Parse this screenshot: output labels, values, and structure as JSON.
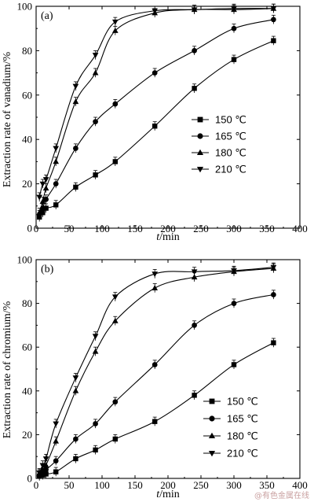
{
  "chart_data": [
    {
      "type": "line",
      "panel_label": "(a)",
      "ylabel": "Extraction rate of vanadium/%",
      "xlabel_italic": "t",
      "xlabel_rest": "/min",
      "xlim": [
        0,
        400
      ],
      "ylim": [
        0,
        100
      ],
      "xticks": [
        0,
        50,
        100,
        150,
        200,
        250,
        300,
        350,
        400
      ],
      "yticks": [
        0,
        20,
        40,
        60,
        80,
        100
      ],
      "grid": false,
      "legend_position": "center-right",
      "series": [
        {
          "name": "150 ℃",
          "marker": "square",
          "x": [
            5,
            10,
            15,
            30,
            60,
            90,
            120,
            180,
            240,
            300,
            360
          ],
          "y": [
            5,
            7,
            9,
            10.5,
            18.5,
            24,
            30,
            46,
            63,
            76,
            84.5
          ]
        },
        {
          "name": "165 ℃",
          "marker": "circle",
          "x": [
            5,
            10,
            15,
            30,
            60,
            90,
            120,
            180,
            240,
            300,
            360
          ],
          "y": [
            6,
            9,
            13,
            20,
            36,
            48,
            56,
            70,
            80,
            90,
            94
          ]
        },
        {
          "name": "180 ℃",
          "marker": "triangle-up",
          "x": [
            5,
            10,
            15,
            30,
            60,
            90,
            120,
            180,
            240,
            300,
            360
          ],
          "y": [
            7,
            12,
            18,
            30,
            57,
            70,
            89,
            97,
            98.5,
            98.5,
            99
          ]
        },
        {
          "name": "210 ℃",
          "marker": "triangle-down",
          "x": [
            5,
            10,
            15,
            30,
            60,
            90,
            120,
            180,
            240,
            300,
            360
          ],
          "y": [
            14,
            20,
            22,
            36,
            64,
            78,
            93,
            98,
            98.5,
            99,
            99
          ]
        }
      ]
    },
    {
      "type": "line",
      "panel_label": "(b)",
      "ylabel": "Extraction rate of chromium/%",
      "xlabel_italic": "t",
      "xlabel_rest": "/min",
      "xlim": [
        0,
        400
      ],
      "ylim": [
        0,
        100
      ],
      "xticks": [
        0,
        50,
        100,
        150,
        200,
        250,
        300,
        350,
        400
      ],
      "yticks": [
        0,
        20,
        40,
        60,
        80,
        100
      ],
      "grid": false,
      "legend_position": "bottom-right",
      "series": [
        {
          "name": "150 ℃",
          "marker": "square",
          "x": [
            5,
            10,
            15,
            30,
            60,
            90,
            120,
            180,
            240,
            300,
            360
          ],
          "y": [
            1,
            1.5,
            2,
            3,
            9,
            13,
            18,
            26,
            38,
            52,
            62
          ]
        },
        {
          "name": "165 ℃",
          "marker": "circle",
          "x": [
            5,
            10,
            15,
            30,
            60,
            90,
            120,
            180,
            240,
            300,
            360
          ],
          "y": [
            1.5,
            3,
            4,
            8,
            18,
            25,
            35,
            52,
            70,
            80,
            84
          ]
        },
        {
          "name": "180 ℃",
          "marker": "triangle-up",
          "x": [
            5,
            10,
            15,
            30,
            60,
            90,
            120,
            180,
            240,
            300,
            360
          ],
          "y": [
            2,
            4,
            6,
            17,
            40,
            58,
            72,
            87,
            92,
            94.5,
            96
          ]
        },
        {
          "name": "210 ℃",
          "marker": "triangle-down",
          "x": [
            5,
            10,
            15,
            30,
            60,
            90,
            120,
            180,
            240,
            300,
            360
          ],
          "y": [
            2.5,
            6,
            9,
            25,
            46,
            65,
            83,
            93.5,
            94.5,
            95,
            96.5
          ]
        }
      ]
    }
  ],
  "watermark": "@有色金属在线"
}
